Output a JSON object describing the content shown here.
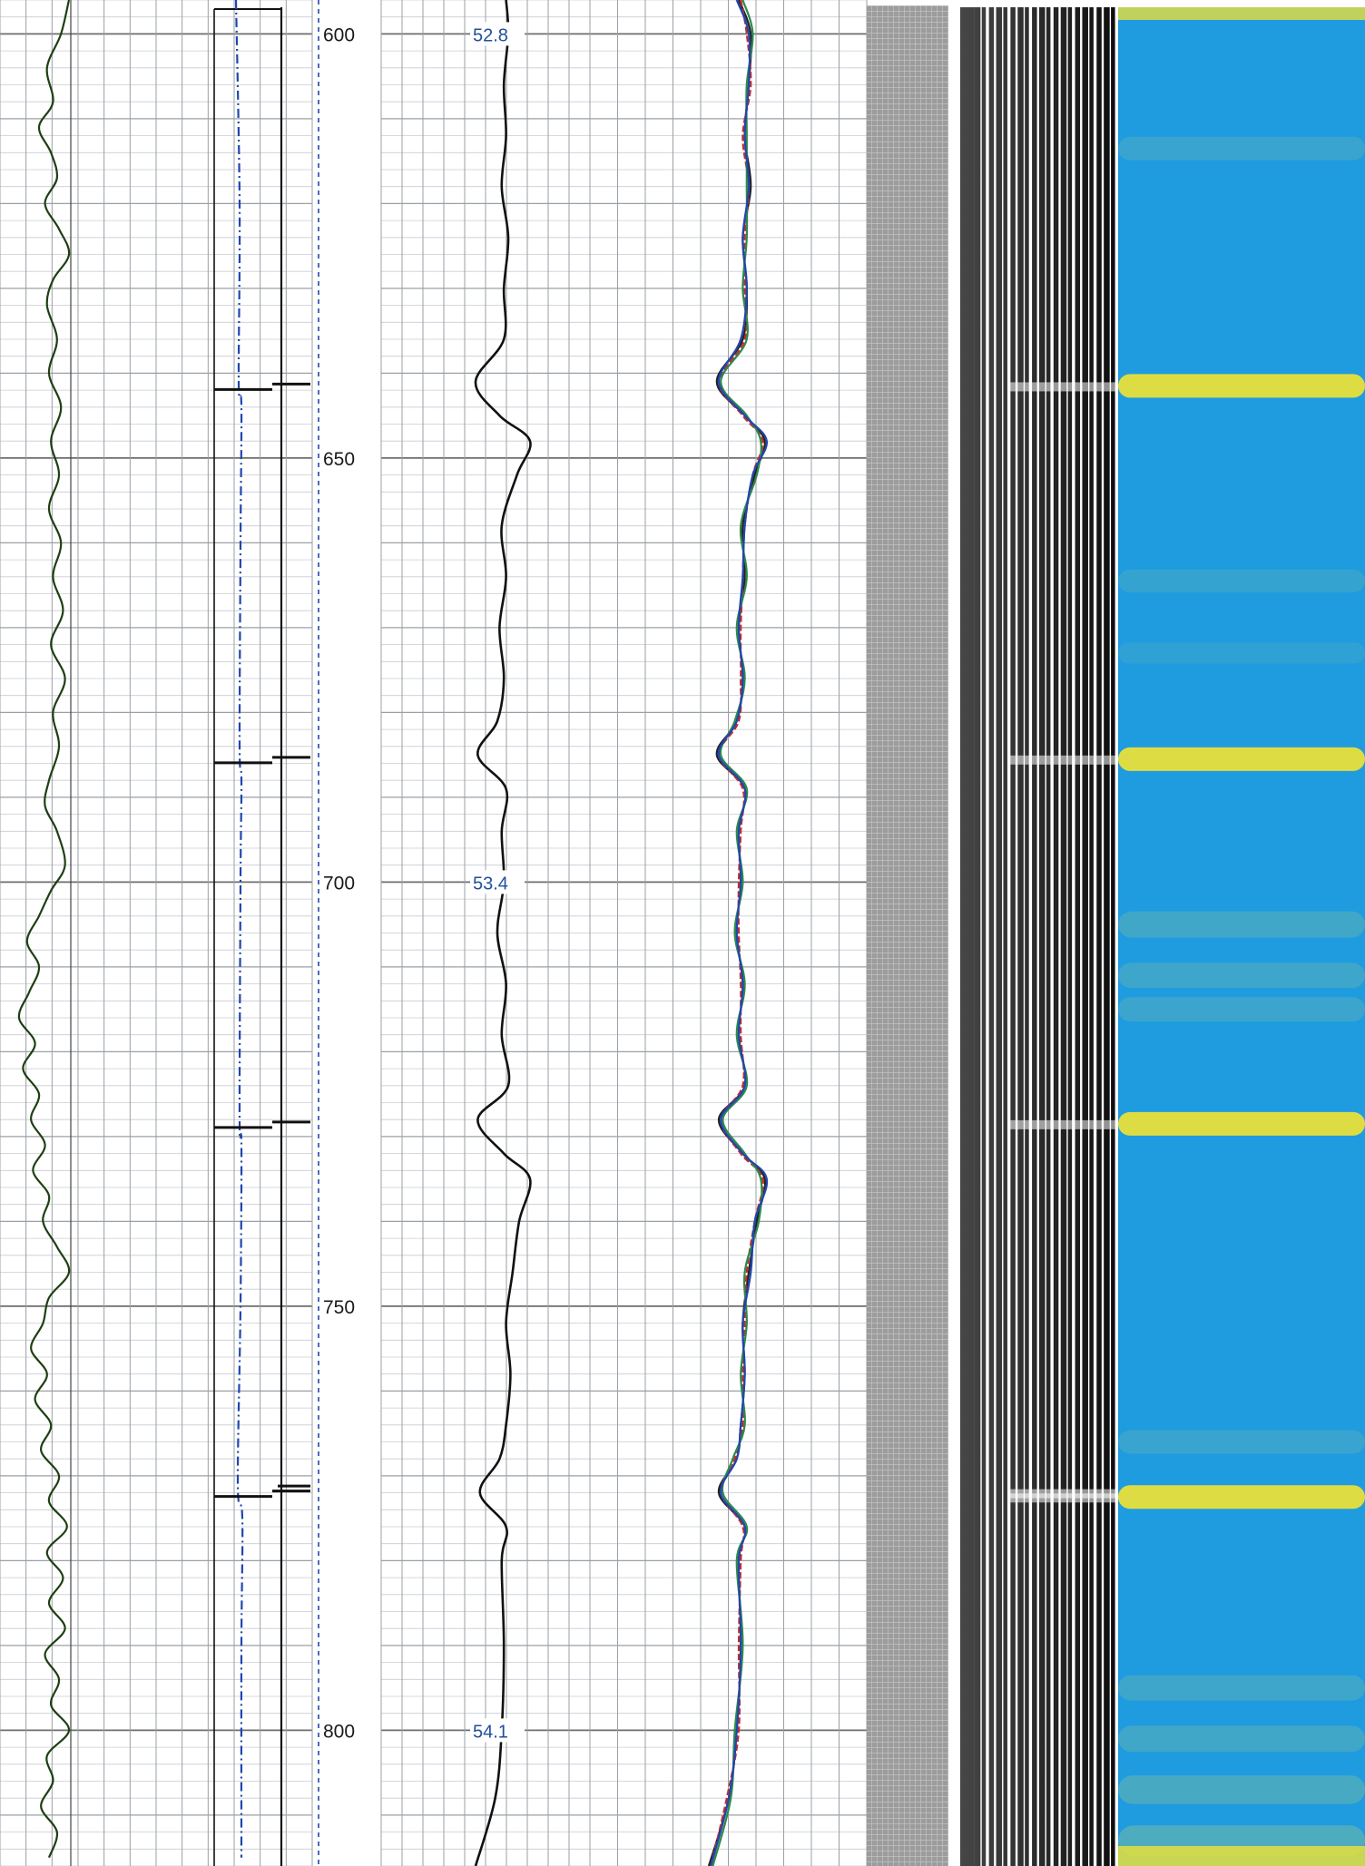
{
  "chart_data": {
    "type": "line",
    "title": "",
    "depth_axis": {
      "range": [
        596,
        816
      ],
      "ticks": [
        600,
        650,
        700,
        750,
        800
      ],
      "tick_labels": [
        "600",
        "650",
        "700",
        "750",
        "800"
      ]
    },
    "travel_time_labels": [
      {
        "depth": 600,
        "label": "52.8"
      },
      {
        "depth": 700,
        "label": "53.4"
      },
      {
        "depth": 800,
        "label": "54.1"
      }
    ],
    "collar_depths": [
      641.5,
      685.5,
      728.5,
      772.0
    ],
    "collar_depths_secondary": [
      771.2
    ],
    "tracks": [
      {
        "name": "track-1-curve",
        "color": "#1e3f12",
        "x_range": [
          0,
          100
        ],
        "samples": [
          [
            596,
            60
          ],
          [
            600,
            52
          ],
          [
            604,
            38
          ],
          [
            608,
            44
          ],
          [
            611,
            30
          ],
          [
            614,
            42
          ],
          [
            617,
            48
          ],
          [
            620,
            36
          ],
          [
            623,
            50
          ],
          [
            626,
            60
          ],
          [
            629,
            44
          ],
          [
            632,
            38
          ],
          [
            636,
            48
          ],
          [
            640,
            40
          ],
          [
            644,
            52
          ],
          [
            648,
            42
          ],
          [
            652,
            50
          ],
          [
            656,
            40
          ],
          [
            660,
            52
          ],
          [
            664,
            44
          ],
          [
            668,
            54
          ],
          [
            672,
            42
          ],
          [
            676,
            56
          ],
          [
            680,
            44
          ],
          [
            684,
            50
          ],
          [
            688,
            40
          ],
          [
            691,
            36
          ],
          [
            694,
            48
          ],
          [
            698,
            56
          ],
          [
            701,
            42
          ],
          [
            704,
            30
          ],
          [
            707,
            18
          ],
          [
            710,
            30
          ],
          [
            713,
            20
          ],
          [
            716,
            10
          ],
          [
            719,
            26
          ],
          [
            722,
            14
          ],
          [
            725,
            30
          ],
          [
            728,
            22
          ],
          [
            731,
            36
          ],
          [
            734,
            24
          ],
          [
            737,
            40
          ],
          [
            740,
            34
          ],
          [
            743,
            48
          ],
          [
            746,
            60
          ],
          [
            749,
            40
          ],
          [
            752,
            34
          ],
          [
            755,
            22
          ],
          [
            758,
            38
          ],
          [
            761,
            26
          ],
          [
            764,
            42
          ],
          [
            767,
            32
          ],
          [
            770,
            50
          ],
          [
            773,
            40
          ],
          [
            776,
            58
          ],
          [
            779,
            38
          ],
          [
            782,
            54
          ],
          [
            785,
            40
          ],
          [
            788,
            56
          ],
          [
            791,
            36
          ],
          [
            794,
            50
          ],
          [
            797,
            42
          ],
          [
            800,
            60
          ],
          [
            803,
            38
          ],
          [
            806,
            44
          ],
          [
            809,
            32
          ],
          [
            812,
            48
          ],
          [
            815,
            40
          ]
        ]
      },
      {
        "name": "track-2-dashed-curve",
        "color": "#2046b0",
        "x_range": [
          0,
          100
        ],
        "samples": [
          [
            596,
            40
          ],
          [
            620,
            44
          ],
          [
            641,
            43
          ],
          [
            644,
            46
          ],
          [
            660,
            45
          ],
          [
            684,
            44
          ],
          [
            688,
            46
          ],
          [
            700,
            45
          ],
          [
            728,
            44
          ],
          [
            731,
            46
          ],
          [
            750,
            45
          ],
          [
            771,
            42
          ],
          [
            775,
            47
          ],
          [
            790,
            46
          ],
          [
            815,
            46
          ]
        ]
      },
      {
        "name": "track-3-travel-time-curve",
        "color": "#111111",
        "x_range": [
          0,
          100
        ],
        "samples": [
          [
            596,
            48
          ],
          [
            600,
            50
          ],
          [
            606,
            46
          ],
          [
            612,
            48
          ],
          [
            618,
            44
          ],
          [
            624,
            50
          ],
          [
            630,
            46
          ],
          [
            636,
            46
          ],
          [
            641,
            20
          ],
          [
            645,
            42
          ],
          [
            648,
            70
          ],
          [
            652,
            58
          ],
          [
            658,
            44
          ],
          [
            664,
            48
          ],
          [
            670,
            42
          ],
          [
            676,
            46
          ],
          [
            681,
            40
          ],
          [
            685,
            22
          ],
          [
            689,
            48
          ],
          [
            694,
            44
          ],
          [
            700,
            46
          ],
          [
            706,
            40
          ],
          [
            712,
            48
          ],
          [
            718,
            44
          ],
          [
            724,
            50
          ],
          [
            728,
            22
          ],
          [
            732,
            46
          ],
          [
            735,
            70
          ],
          [
            740,
            60
          ],
          [
            746,
            54
          ],
          [
            752,
            48
          ],
          [
            758,
            52
          ],
          [
            764,
            48
          ],
          [
            768,
            42
          ],
          [
            772,
            24
          ],
          [
            776,
            48
          ],
          [
            780,
            44
          ],
          [
            790,
            46
          ],
          [
            800,
            44
          ],
          [
            808,
            38
          ],
          [
            816,
            20
          ]
        ]
      },
      {
        "name": "track-4-curve-black",
        "color": "#222222",
        "x_range": [
          0,
          100
        ],
        "samples": [
          [
            596,
            40
          ],
          [
            600,
            52
          ],
          [
            606,
            50
          ],
          [
            612,
            46
          ],
          [
            618,
            52
          ],
          [
            624,
            44
          ],
          [
            630,
            48
          ],
          [
            636,
            44
          ],
          [
            641,
            18
          ],
          [
            645,
            46
          ],
          [
            648,
            66
          ],
          [
            652,
            56
          ],
          [
            658,
            44
          ],
          [
            664,
            46
          ],
          [
            670,
            40
          ],
          [
            676,
            44
          ],
          [
            681,
            38
          ],
          [
            685,
            18
          ],
          [
            689,
            46
          ],
          [
            694,
            40
          ],
          [
            700,
            42
          ],
          [
            706,
            38
          ],
          [
            712,
            44
          ],
          [
            718,
            40
          ],
          [
            724,
            46
          ],
          [
            728,
            20
          ],
          [
            732,
            44
          ],
          [
            735,
            66
          ],
          [
            740,
            58
          ],
          [
            746,
            50
          ],
          [
            752,
            44
          ],
          [
            758,
            46
          ],
          [
            764,
            42
          ],
          [
            768,
            38
          ],
          [
            772,
            20
          ],
          [
            776,
            46
          ],
          [
            780,
            40
          ],
          [
            790,
            42
          ],
          [
            800,
            38
          ],
          [
            808,
            30
          ],
          [
            816,
            10
          ]
        ]
      },
      {
        "name": "track-4-curve-red",
        "color": "#c42b2b",
        "x_range": [
          0,
          100
        ],
        "samples": [
          [
            596,
            42
          ],
          [
            600,
            48
          ],
          [
            606,
            52
          ],
          [
            612,
            44
          ],
          [
            618,
            50
          ],
          [
            624,
            46
          ],
          [
            630,
            46
          ],
          [
            636,
            46
          ],
          [
            641,
            20
          ],
          [
            645,
            44
          ],
          [
            648,
            64
          ],
          [
            652,
            54
          ],
          [
            658,
            46
          ],
          [
            664,
            44
          ],
          [
            670,
            42
          ],
          [
            676,
            42
          ],
          [
            681,
            40
          ],
          [
            685,
            20
          ],
          [
            689,
            44
          ],
          [
            694,
            42
          ],
          [
            700,
            40
          ],
          [
            706,
            40
          ],
          [
            712,
            42
          ],
          [
            718,
            42
          ],
          [
            724,
            44
          ],
          [
            728,
            22
          ],
          [
            732,
            42
          ],
          [
            735,
            64
          ],
          [
            740,
            56
          ],
          [
            746,
            48
          ],
          [
            752,
            46
          ],
          [
            758,
            44
          ],
          [
            764,
            44
          ],
          [
            768,
            36
          ],
          [
            772,
            22
          ],
          [
            776,
            44
          ],
          [
            780,
            42
          ],
          [
            790,
            40
          ],
          [
            800,
            40
          ],
          [
            808,
            28
          ],
          [
            816,
            12
          ]
        ]
      },
      {
        "name": "track-4-curve-green",
        "color": "#2d8a4a",
        "x_range": [
          0,
          100
        ],
        "samples": [
          [
            596,
            44
          ],
          [
            600,
            54
          ],
          [
            606,
            48
          ],
          [
            612,
            48
          ],
          [
            618,
            48
          ],
          [
            624,
            48
          ],
          [
            630,
            44
          ],
          [
            636,
            48
          ],
          [
            641,
            22
          ],
          [
            645,
            48
          ],
          [
            648,
            62
          ],
          [
            652,
            58
          ],
          [
            658,
            42
          ],
          [
            664,
            48
          ],
          [
            670,
            38
          ],
          [
            676,
            46
          ],
          [
            681,
            36
          ],
          [
            685,
            22
          ],
          [
            689,
            48
          ],
          [
            694,
            38
          ],
          [
            700,
            44
          ],
          [
            706,
            36
          ],
          [
            712,
            46
          ],
          [
            718,
            38
          ],
          [
            724,
            48
          ],
          [
            728,
            24
          ],
          [
            732,
            46
          ],
          [
            735,
            62
          ],
          [
            740,
            60
          ],
          [
            746,
            46
          ],
          [
            752,
            48
          ],
          [
            758,
            42
          ],
          [
            764,
            46
          ],
          [
            768,
            34
          ],
          [
            772,
            24
          ],
          [
            776,
            48
          ],
          [
            780,
            38
          ],
          [
            790,
            44
          ],
          [
            800,
            36
          ],
          [
            808,
            32
          ],
          [
            816,
            14
          ]
        ]
      },
      {
        "name": "track-4-curve-blue",
        "color": "#2046b0",
        "x_range": [
          0,
          100
        ],
        "samples": [
          [
            596,
            38
          ],
          [
            600,
            50
          ],
          [
            606,
            50
          ],
          [
            612,
            46
          ],
          [
            618,
            50
          ],
          [
            624,
            44
          ],
          [
            630,
            48
          ],
          [
            636,
            42
          ],
          [
            641,
            20
          ],
          [
            645,
            46
          ],
          [
            648,
            68
          ],
          [
            652,
            54
          ],
          [
            658,
            46
          ],
          [
            664,
            44
          ],
          [
            670,
            40
          ],
          [
            676,
            44
          ],
          [
            681,
            38
          ],
          [
            685,
            20
          ],
          [
            689,
            46
          ],
          [
            694,
            40
          ],
          [
            700,
            42
          ],
          [
            706,
            38
          ],
          [
            712,
            44
          ],
          [
            718,
            40
          ],
          [
            724,
            46
          ],
          [
            728,
            22
          ],
          [
            732,
            44
          ],
          [
            735,
            68
          ],
          [
            740,
            56
          ],
          [
            746,
            52
          ],
          [
            752,
            44
          ],
          [
            758,
            46
          ],
          [
            764,
            42
          ],
          [
            768,
            38
          ],
          [
            772,
            22
          ],
          [
            776,
            46
          ],
          [
            780,
            40
          ],
          [
            790,
            42
          ],
          [
            800,
            38
          ],
          [
            808,
            30
          ],
          [
            816,
            12
          ]
        ]
      }
    ],
    "amplitude_image": {
      "name": "cement-bond-amplitude-image",
      "bright_bands": [
        {
          "depth": 641.5,
          "strength": 0.95
        },
        {
          "depth": 685.5,
          "strength": 0.95
        },
        {
          "depth": 728.5,
          "strength": 0.95
        },
        {
          "depth": 772.5,
          "strength": 1.0
        },
        {
          "depth": 613.5,
          "strength": 0.45
        },
        {
          "depth": 664.5,
          "strength": 0.4
        },
        {
          "depth": 673,
          "strength": 0.3
        },
        {
          "depth": 705,
          "strength": 0.6
        },
        {
          "depth": 711,
          "strength": 0.55
        },
        {
          "depth": 715,
          "strength": 0.5
        },
        {
          "depth": 766,
          "strength": 0.45
        },
        {
          "depth": 795,
          "strength": 0.55
        },
        {
          "depth": 801,
          "strength": 0.6
        },
        {
          "depth": 807,
          "strength": 0.75
        },
        {
          "depth": 813,
          "strength": 0.85
        }
      ],
      "colors": {
        "base": "#1f9be0",
        "high": "#e8e03a",
        "mid": "#6fb8a8"
      }
    },
    "grid": true
  }
}
